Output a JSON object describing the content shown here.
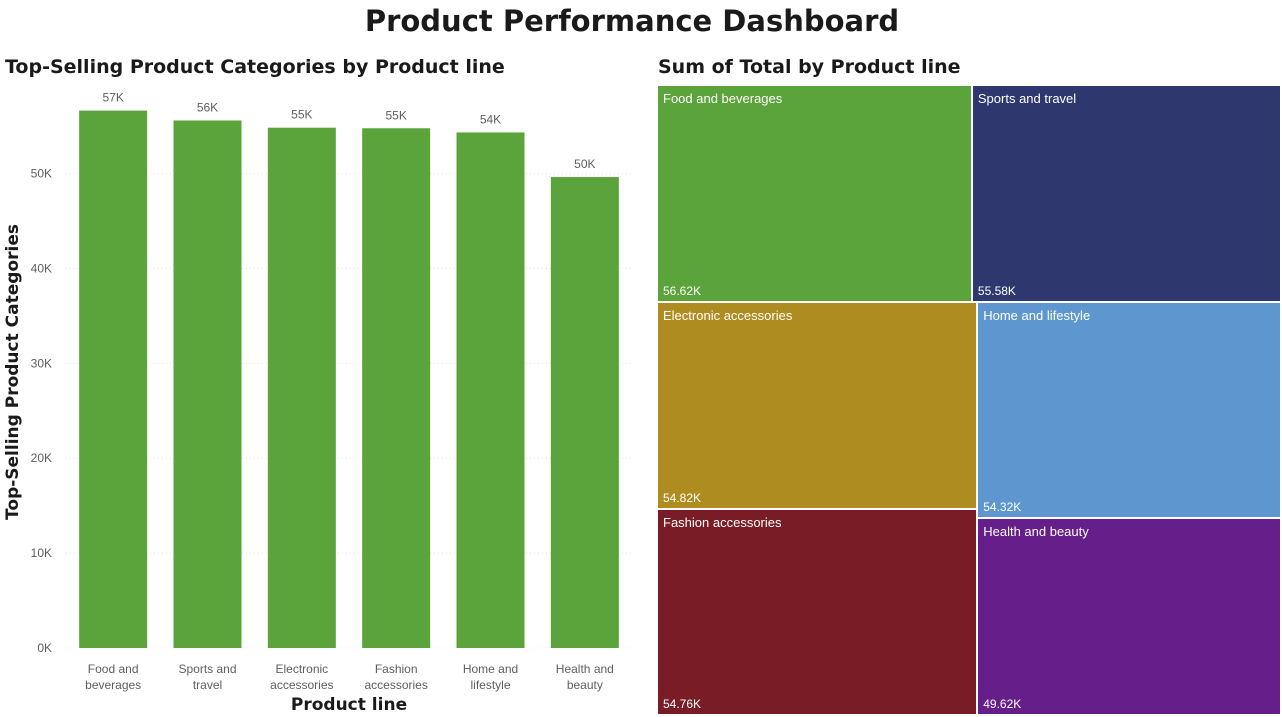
{
  "dashboard": {
    "title": "Product Performance Dashboard"
  },
  "chart_data": [
    {
      "type": "bar",
      "title": "Top-Selling Product Categories by Product line",
      "xlabel": "Product line",
      "ylabel": "Top-Selling Product Categories",
      "categories": [
        [
          "Food and",
          "beverages"
        ],
        [
          "Sports and",
          "travel"
        ],
        [
          "Electronic",
          "accessories"
        ],
        [
          "Fashion",
          "accessories"
        ],
        [
          "Home and",
          "lifestyle"
        ],
        [
          "Health and",
          "beauty"
        ]
      ],
      "values": [
        56620,
        55580,
        54820,
        54760,
        54320,
        49620
      ],
      "data_labels": [
        "57K",
        "56K",
        "55K",
        "55K",
        "54K",
        "50K"
      ],
      "yticks": [
        0,
        10000,
        20000,
        30000,
        40000,
        50000
      ],
      "ytick_labels": [
        "0K",
        "10K",
        "20K",
        "30K",
        "40K",
        "50K"
      ],
      "ylim": [
        0,
        57000
      ],
      "grid": true,
      "color": "#5ba33b"
    },
    {
      "type": "treemap",
      "title": "Sum of Total by Product line",
      "items": [
        {
          "label": "Food and beverages",
          "value": 56620,
          "value_label": "56.62K",
          "color": "#5ba33b"
        },
        {
          "label": "Sports and travel",
          "value": 55580,
          "value_label": "55.58K",
          "color": "#2e386e"
        },
        {
          "label": "Electronic accessories",
          "value": 54820,
          "value_label": "54.82K",
          "color": "#ae8c20"
        },
        {
          "label": "Fashion accessories",
          "value": 54760,
          "value_label": "54.76K",
          "color": "#7a1c26"
        },
        {
          "label": "Home and lifestyle",
          "value": 54320,
          "value_label": "54.32K",
          "color": "#5e97d0"
        },
        {
          "label": "Health and beauty",
          "value": 49620,
          "value_label": "49.62K",
          "color": "#661e8a"
        }
      ]
    }
  ]
}
